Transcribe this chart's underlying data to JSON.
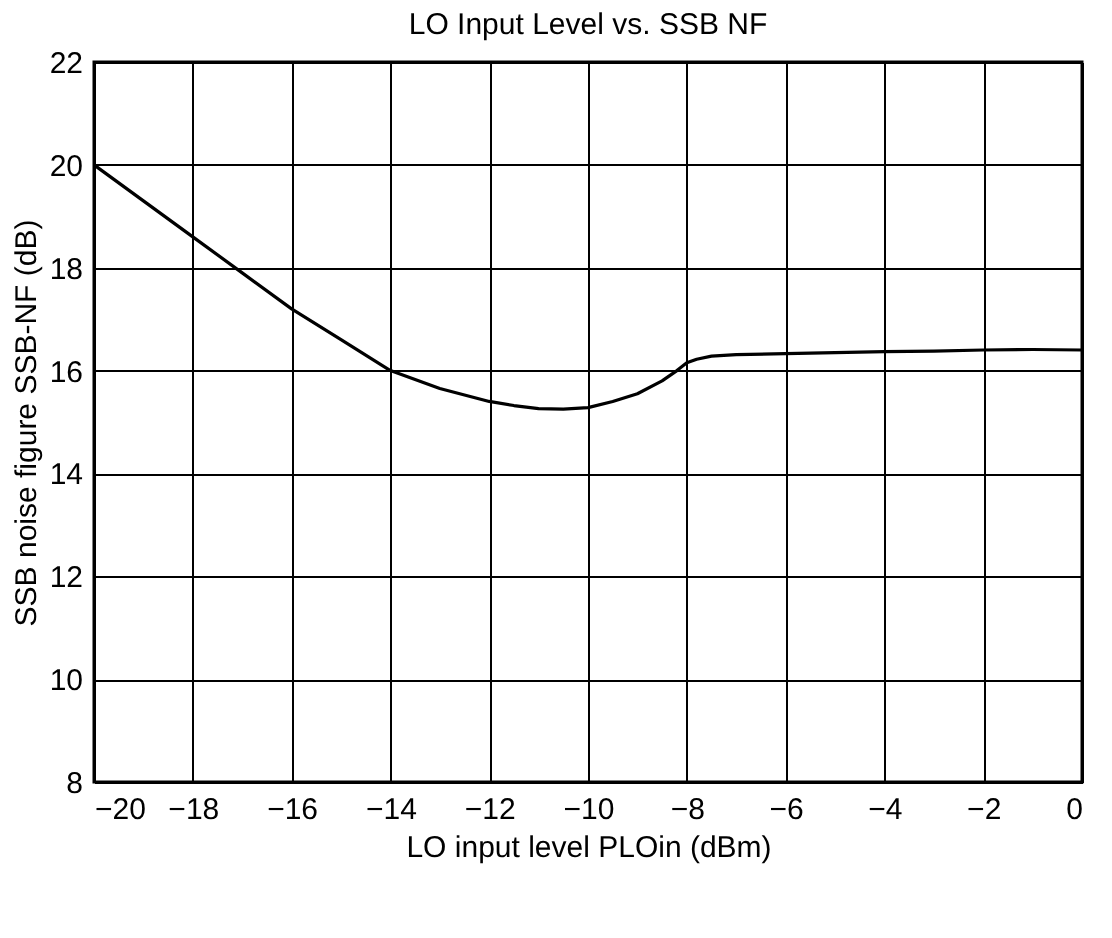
{
  "chart_data": {
    "type": "line",
    "title": "LO Input Level vs. SSB NF",
    "xlabel": "LO input level PLOin (dBm)",
    "ylabel": "SSB noise figure SSB-NF (dB)",
    "x": [
      -20,
      -19,
      -18,
      -17,
      -16,
      -15,
      -14,
      -13,
      -12,
      -11.5,
      -11,
      -10.5,
      -10,
      -9.5,
      -9,
      -8.5,
      -8.2,
      -8,
      -7.8,
      -7.5,
      -7,
      -6,
      -5,
      -4,
      -3,
      -2,
      -1,
      0
    ],
    "series": [
      {
        "color": "#000000",
        "values": [
          20.0,
          19.3,
          18.6,
          17.9,
          17.2,
          16.6,
          16.0,
          15.65,
          15.4,
          15.32,
          15.26,
          15.25,
          15.28,
          15.4,
          15.55,
          15.8,
          16.0,
          16.15,
          16.22,
          16.28,
          16.31,
          16.33,
          16.35,
          16.37,
          16.38,
          16.4,
          16.41,
          16.4
        ]
      }
    ],
    "xlim": [
      -20,
      0
    ],
    "xticks": [
      -20,
      -18,
      -16,
      -14,
      -12,
      -10,
      -8,
      -6,
      -4,
      -2,
      0
    ],
    "ylim": [
      8,
      22
    ],
    "yticks": [
      8,
      10,
      12,
      14,
      16,
      18,
      20,
      22
    ],
    "grid": true,
    "marker": "none",
    "line_style": "solid",
    "legend": false
  }
}
